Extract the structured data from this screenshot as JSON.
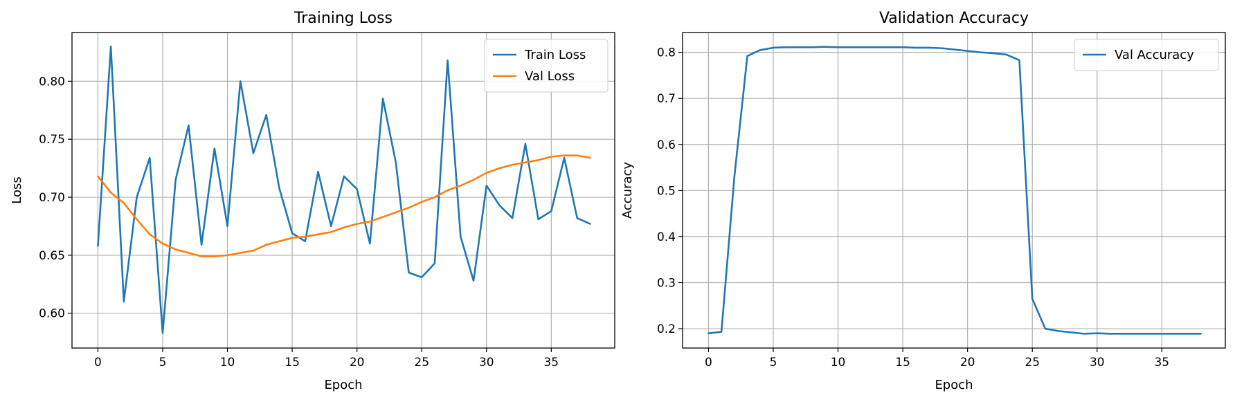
{
  "chart_data": [
    {
      "type": "line",
      "title": "Training Loss",
      "xlabel": "Epoch",
      "ylabel": "Loss",
      "xlim": [
        -2,
        39.9
      ],
      "ylim": [
        0.57,
        0.842
      ],
      "xticks": [
        0,
        5,
        10,
        15,
        20,
        25,
        30,
        35
      ],
      "yticks": [
        0.6,
        0.65,
        0.7,
        0.75,
        0.8
      ],
      "ytick_format": 2,
      "grid": true,
      "legend_position": "upper right",
      "x": [
        0,
        1,
        2,
        3,
        4,
        5,
        6,
        7,
        8,
        9,
        10,
        11,
        12,
        13,
        14,
        15,
        16,
        17,
        18,
        19,
        20,
        21,
        22,
        23,
        24,
        25,
        26,
        27,
        28,
        29,
        30,
        31,
        32,
        33,
        34,
        35,
        36,
        37,
        38
      ],
      "series": [
        {
          "name": "Train Loss",
          "color": "#1f77b4",
          "values": [
            0.658,
            0.83,
            0.61,
            0.7,
            0.734,
            0.583,
            0.715,
            0.762,
            0.659,
            0.742,
            0.675,
            0.8,
            0.738,
            0.771,
            0.708,
            0.669,
            0.662,
            0.722,
            0.675,
            0.718,
            0.707,
            0.66,
            0.785,
            0.73,
            0.635,
            0.631,
            0.643,
            0.818,
            0.666,
            0.628,
            0.71,
            0.693,
            0.682,
            0.746,
            0.681,
            0.688,
            0.734,
            0.682,
            0.677
          ]
        },
        {
          "name": "Val Loss",
          "color": "#ff7f0e",
          "values": [
            0.718,
            0.704,
            0.695,
            0.681,
            0.668,
            0.66,
            0.655,
            0.652,
            0.649,
            0.649,
            0.65,
            0.652,
            0.654,
            0.659,
            0.662,
            0.665,
            0.666,
            0.668,
            0.67,
            0.674,
            0.677,
            0.679,
            0.683,
            0.687,
            0.691,
            0.696,
            0.7,
            0.706,
            0.71,
            0.715,
            0.721,
            0.725,
            0.728,
            0.73,
            0.732,
            0.735,
            0.736,
            0.736,
            0.734
          ]
        }
      ]
    },
    {
      "type": "line",
      "title": "Validation Accuracy",
      "xlabel": "Epoch",
      "ylabel": "Accuracy",
      "xlim": [
        -2,
        39.9
      ],
      "ylim": [
        0.158,
        0.843
      ],
      "xticks": [
        0,
        5,
        10,
        15,
        20,
        25,
        30,
        35
      ],
      "yticks": [
        0.2,
        0.3,
        0.4,
        0.5,
        0.6,
        0.7,
        0.8
      ],
      "ytick_format": 1,
      "grid": true,
      "legend_position": "upper right",
      "x": [
        0,
        1,
        2,
        3,
        4,
        5,
        6,
        7,
        8,
        9,
        10,
        11,
        12,
        13,
        14,
        15,
        16,
        17,
        18,
        19,
        20,
        21,
        22,
        23,
        24,
        25,
        26,
        27,
        28,
        29,
        30,
        31,
        32,
        33,
        34,
        35,
        36,
        37,
        38
      ],
      "series": [
        {
          "name": "Val Accuracy",
          "color": "#1f77b4",
          "values": [
            0.19,
            0.193,
            0.53,
            0.792,
            0.805,
            0.81,
            0.811,
            0.811,
            0.811,
            0.812,
            0.811,
            0.811,
            0.811,
            0.811,
            0.811,
            0.811,
            0.81,
            0.81,
            0.809,
            0.806,
            0.803,
            0.8,
            0.798,
            0.795,
            0.783,
            0.265,
            0.2,
            0.195,
            0.192,
            0.189,
            0.19,
            0.189,
            0.189,
            0.189,
            0.189,
            0.189,
            0.189,
            0.189,
            0.189
          ]
        }
      ]
    }
  ]
}
